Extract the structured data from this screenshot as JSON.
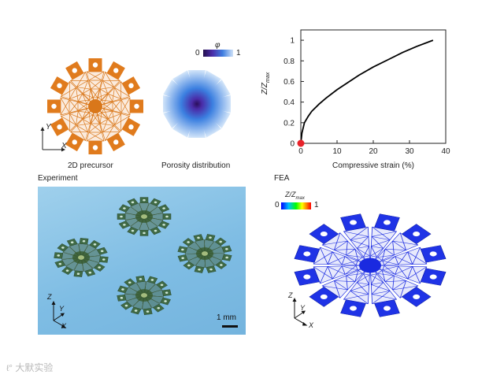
{
  "panels": {
    "precursor": {
      "caption": "2D precursor",
      "axes": {
        "y": "Y",
        "x": "X"
      }
    },
    "porosity": {
      "caption": "Porosity distribution",
      "colorbar": {
        "symbol": "φ",
        "min_label": "0",
        "max_label": "1"
      }
    },
    "experiment": {
      "label": "Experiment",
      "scale_bar": "1 mm",
      "axes": {
        "z": "Z",
        "y": "Y",
        "x": "X"
      }
    },
    "fea": {
      "label": "FEA",
      "colorbar": {
        "title": "Z/Zmax",
        "min_label": "0",
        "max_label": "1"
      },
      "axes": {
        "z": "Z",
        "y": "Y",
        "x": "X"
      }
    }
  },
  "chart_data": {
    "type": "line",
    "xlabel": "Compressive strain (%)",
    "ylabel": "Z/Zmax",
    "xlim": [
      0,
      40
    ],
    "ylim": [
      0,
      1.1
    ],
    "xticks": [
      "0",
      "10",
      "20",
      "30",
      "40"
    ],
    "yticks": [
      "0",
      "0.2",
      "0.4",
      "0.6",
      "0.8",
      "1"
    ],
    "series": [
      {
        "x": [
          0,
          0.3,
          1,
          2,
          3,
          5,
          7,
          10,
          13,
          16,
          20,
          24,
          28,
          32,
          36.5
        ],
        "y": [
          0,
          0.1,
          0.2,
          0.26,
          0.31,
          0.38,
          0.44,
          0.52,
          0.59,
          0.66,
          0.74,
          0.81,
          0.88,
          0.94,
          1.0
        ],
        "color": "#000000"
      }
    ],
    "marker": {
      "x": 0,
      "y": 0,
      "color": "#e8232a"
    }
  },
  "watermark": "大默实验"
}
